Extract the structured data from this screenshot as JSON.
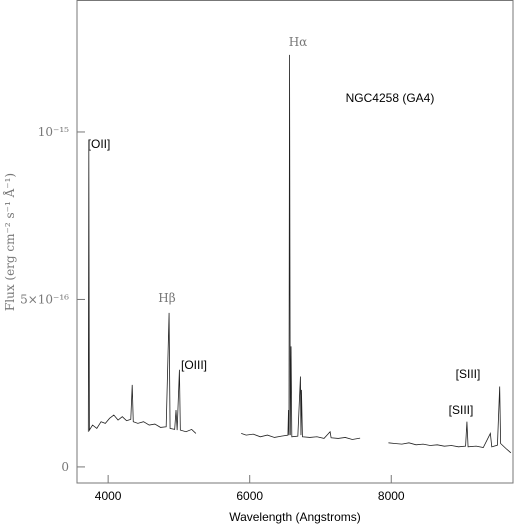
{
  "chart_data": {
    "type": "line",
    "x_label": "Wavelength (Angstroms)",
    "y_label": "Flux (erg cm⁻² s⁻¹ Å⁻¹)",
    "annotations": [
      "Hα",
      "NGC4258 (GA4)",
      "[OII]",
      "Hβ",
      "[OIII]",
      "[SIII]",
      "[SIII]"
    ],
    "color": "#222222",
    "x": [
      3720,
      3727,
      3735,
      3780,
      3840,
      3900,
      3960,
      4020,
      4080,
      4140,
      4200,
      4260,
      4320,
      4340,
      4355,
      4420,
      4500,
      4580,
      4660,
      4740,
      4820,
      4861,
      4875,
      4940,
      4959,
      4975,
      5007,
      5020,
      5100,
      5180,
      5240,
      5560,
      5880,
      5950,
      6050,
      6150,
      6250,
      6350,
      6450,
      6540,
      6548,
      6555,
      6563,
      6573,
      6584,
      6595,
      6680,
      6717,
      6724,
      6731,
      6745,
      6850,
      6950,
      7050,
      7136,
      7150,
      7250,
      7350,
      7450,
      7560,
      7760,
      7960,
      8050,
      8150,
      8250,
      8350,
      8450,
      8550,
      8650,
      8750,
      8850,
      8950,
      9050,
      9069,
      9085,
      9200,
      9300,
      9400,
      9420,
      9500,
      9532,
      9545,
      9620,
      9690
    ],
    "values": [
      1.05e-16,
      9.7e-16,
      1.1e-16,
      1.25e-16,
      1.15e-16,
      1.35e-16,
      1.3e-16,
      1.45e-16,
      1.55e-16,
      1.4e-16,
      1.5e-16,
      1.38e-16,
      1.42e-16,
      2.45e-16,
      1.35e-16,
      1.3e-16,
      1.35e-16,
      1.25e-16,
      1.28e-16,
      1.18e-16,
      1.2e-16,
      4.6e-16,
      1.15e-16,
      1.12e-16,
      1.7e-16,
      1.1e-16,
      2.9e-16,
      1.1e-16,
      1.05e-16,
      1.12e-16,
      1e-16,
      null,
      1e-16,
      9.5e-17,
      9.8e-17,
      9e-17,
      9.5e-17,
      8.8e-17,
      9.2e-17,
      9.5e-17,
      1.7e-16,
      9.5e-17,
      1.23e-15,
      9.5e-17,
      3.6e-16,
      9e-17,
      9.2e-17,
      2.7e-16,
      9.5e-17,
      2.3e-16,
      9e-17,
      8.8e-17,
      9e-17,
      8.5e-17,
      1.05e-16,
      8.7e-17,
      8.5e-17,
      8.8e-17,
      8.2e-17,
      8.6e-17,
      null,
      7.2e-17,
      7e-17,
      6.8e-17,
      7.2e-17,
      6.6e-17,
      6.8e-17,
      6.4e-17,
      6.6e-17,
      6.2e-17,
      6.4e-17,
      6e-17,
      6.2e-17,
      1.35e-16,
      6e-17,
      6.2e-17,
      5.8e-17,
      1e-16,
      6e-17,
      6.5e-17,
      2.4e-16,
      7e-17,
      5.5e-17,
      4.2e-17
    ],
    "xlim": [
      3560,
      9720
    ],
    "xticks": [
      4000,
      6000,
      8000
    ],
    "ylim": [
      -4.8e-17,
      1.394e-15
    ],
    "yticks": [
      {
        "value": 1e-15,
        "label": "10⁻¹⁵"
      },
      {
        "value": 5e-16,
        "label": "5×10⁻¹⁶"
      },
      0
    ]
  }
}
